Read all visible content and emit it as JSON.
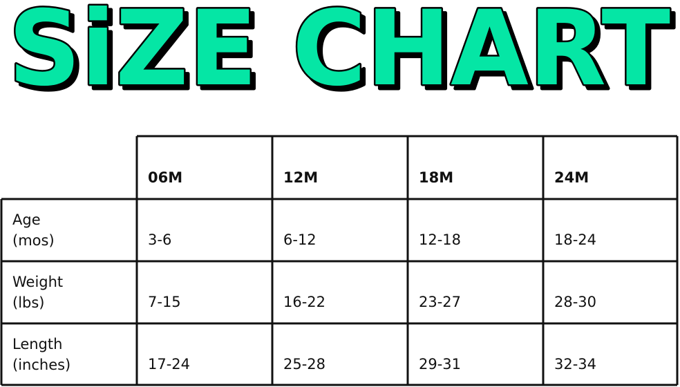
{
  "title": {
    "text": "SiZE CHART",
    "fill_color": "#05E6A5",
    "outline_color": "#000000"
  },
  "table": {
    "columns": [
      "06M",
      "12M",
      "18M",
      "24M"
    ],
    "rows": [
      {
        "label_line1": "Age",
        "label_line2": "(mos)",
        "values": [
          "3-6",
          "6-12",
          "12-18",
          "18-24"
        ]
      },
      {
        "label_line1": "Weight",
        "label_line2": "(lbs)",
        "values": [
          "7-15",
          "16-22",
          "23-27",
          "28-30"
        ]
      },
      {
        "label_line1": "Length",
        "label_line2": "(inches)",
        "values": [
          "17-24",
          "25-28",
          "29-31",
          "32-34"
        ]
      }
    ]
  }
}
